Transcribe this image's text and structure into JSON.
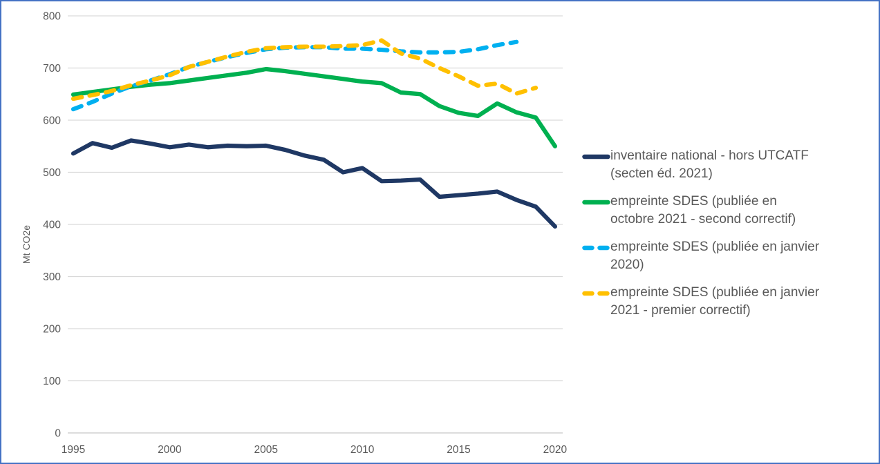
{
  "panel": {
    "border_color": "#4472C4",
    "background": "#FFFFFF",
    "grid_color": "#D9D9D9",
    "baseline_color": "#C6C6C6",
    "tick_text_color": "#595959"
  },
  "legend": {
    "items": [
      {
        "label": "inventaire national - hors UTCATF\n(secten éd. 2021)",
        "color": "#1F3864",
        "dash": "solid"
      },
      {
        "label": "empreinte SDES (publiée en\noctobre 2021 - second correctif)",
        "color": "#00B050",
        "dash": "solid"
      },
      {
        "label": "empreinte SDES (publiée en janvier\n2020)",
        "color": "#00B0F0",
        "dash": "dashed"
      },
      {
        "label": "empreinte SDES (publiée en janvier\n2021 - premier correctif)",
        "color": "#FFC000",
        "dash": "dashed"
      }
    ]
  },
  "chart_data": {
    "type": "line",
    "title": "",
    "xlabel": "",
    "ylabel": "Mt CO2e",
    "ylim": [
      0,
      800
    ],
    "yticks": [
      0,
      100,
      200,
      300,
      400,
      500,
      600,
      700,
      800
    ],
    "xlim": [
      1995,
      2020
    ],
    "xticks": [
      1995,
      2000,
      2005,
      2010,
      2015,
      2020
    ],
    "grid": true,
    "legend_position": "right",
    "series": [
      {
        "name": "inventaire national - hors UTCATF (secten éd. 2021)",
        "color": "#1F3864",
        "dash": "solid",
        "start_year": 1995,
        "values": [
          536,
          556,
          547,
          561,
          555,
          548,
          553,
          548,
          551,
          550,
          551,
          543,
          532,
          524,
          500,
          508,
          483,
          484,
          486,
          453,
          456,
          459,
          463,
          447,
          434,
          396
        ]
      },
      {
        "name": "empreinte SDES (publiée en octobre 2021 - second correctif)",
        "color": "#00B050",
        "dash": "solid",
        "start_year": 1995,
        "values": [
          649,
          654,
          659,
          664,
          668,
          671,
          676,
          681,
          686,
          691,
          698,
          694,
          689,
          684,
          679,
          674,
          671,
          653,
          650,
          627,
          614,
          608,
          632,
          615,
          605,
          550
        ]
      },
      {
        "name": "empreinte SDES (publiée en janvier 2020)",
        "color": "#00B0F0",
        "dash": "dashed",
        "start_year": 1995,
        "values": [
          621,
          635,
          651,
          665,
          676,
          688,
          702,
          712,
          721,
          729,
          736,
          739,
          740,
          740,
          737,
          737,
          735,
          732,
          730,
          730,
          731,
          736,
          744,
          750
        ]
      },
      {
        "name": "empreinte SDES (publiée en janvier 2021 - premier correctif)",
        "color": "#FFC000",
        "dash": "dashed",
        "start_year": 1995,
        "values": [
          641,
          648,
          656,
          667,
          676,
          686,
          702,
          712,
          722,
          731,
          738,
          740,
          741,
          741,
          742,
          744,
          753,
          728,
          718,
          700,
          684,
          666,
          670,
          651,
          662
        ]
      }
    ]
  }
}
